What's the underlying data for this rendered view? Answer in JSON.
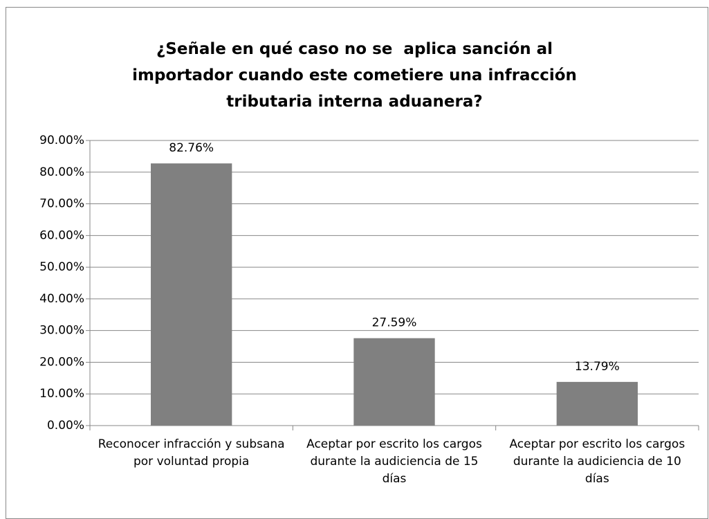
{
  "chart_data": {
    "type": "bar",
    "title": "¿Señale en qué caso no se  aplica sanción al importador cuando este cometiere una infracción tributaria interna aduanera?",
    "categories": [
      "Reconocer infracción y subsana por voluntad propia",
      "Aceptar por escrito los cargos durante la audiciencia de 15 días",
      "Aceptar por escrito los cargos durante la audiciencia de 10 días"
    ],
    "values": [
      82.76,
      27.59,
      13.79
    ],
    "value_labels": [
      "82.76%",
      "27.59%",
      "13.79%"
    ],
    "color": "#808080",
    "ylim": [
      0,
      90
    ],
    "yticks": [
      {
        "value": 0,
        "label": "0.00%"
      },
      {
        "value": 10,
        "label": "10.00%"
      },
      {
        "value": 20,
        "label": "20.00%"
      },
      {
        "value": 30,
        "label": "30.00%"
      },
      {
        "value": 40,
        "label": "40.00%"
      },
      {
        "value": 50,
        "label": "50.00%"
      },
      {
        "value": 60,
        "label": "60.00%"
      },
      {
        "value": 70,
        "label": "70.00%"
      },
      {
        "value": 80,
        "label": "80.00%"
      },
      {
        "value": 90,
        "label": "90.00%"
      }
    ],
    "grid": true
  }
}
